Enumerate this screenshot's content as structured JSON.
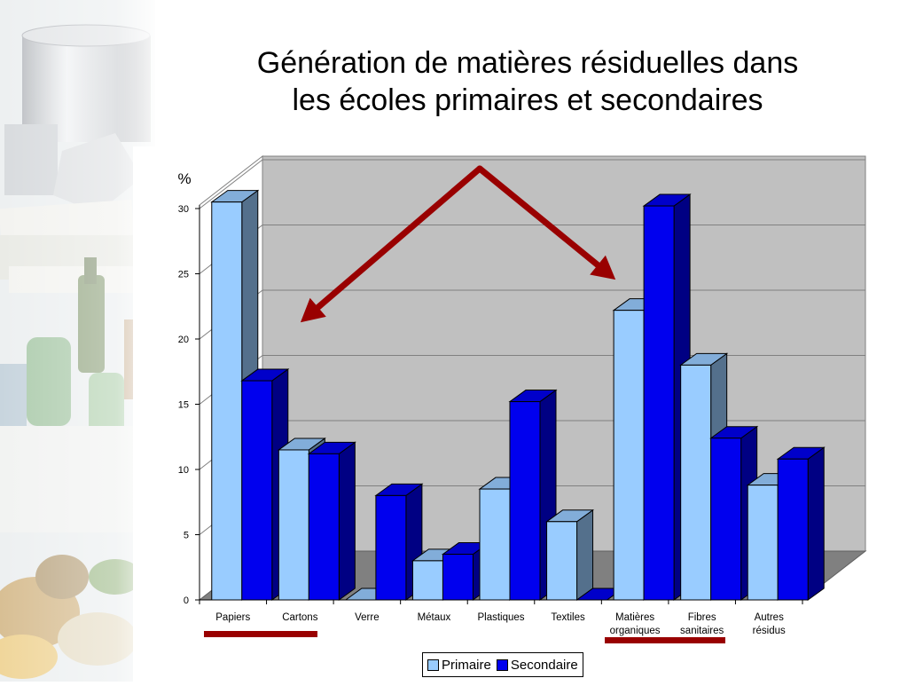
{
  "title_lines": [
    "Génération de matières résiduelles dans",
    "les écoles primaires et secondaires"
  ],
  "colors": {
    "primaire": "#99ccff",
    "secondaire": "#0000ee",
    "highlight": "#990000",
    "plot_back": "#c0c0c0",
    "floor": "#808080"
  },
  "chart_data": {
    "type": "bar",
    "unit_label": "%",
    "categories": [
      [
        "Papiers"
      ],
      [
        "Cartons"
      ],
      [
        "Verre"
      ],
      [
        "Métaux"
      ],
      [
        "Plastiques"
      ],
      [
        "Textiles"
      ],
      [
        "Matières",
        "organiques"
      ],
      [
        "Fibres",
        "sanitaires"
      ],
      [
        "Autres",
        "résidus"
      ]
    ],
    "series": [
      {
        "name": "Primaire",
        "values": [
          30.5,
          11.5,
          0,
          3,
          8.5,
          6,
          22.2,
          18,
          8.8
        ]
      },
      {
        "name": "Secondaire",
        "values": [
          16.8,
          11.2,
          8,
          3.5,
          15.2,
          0,
          30.2,
          12.4,
          10.8
        ]
      }
    ],
    "ylim": [
      0,
      30
    ],
    "yticks": [
      0,
      5,
      10,
      15,
      20,
      25,
      30
    ],
    "grid": true,
    "legend": "bottom",
    "annotations": "Two red arrows from a common apex pointing toward Papiers/Cartons and Matières organiques; red underline bars beneath Papiers–Cartons and Matières organiques–Fibres sanitaires"
  }
}
